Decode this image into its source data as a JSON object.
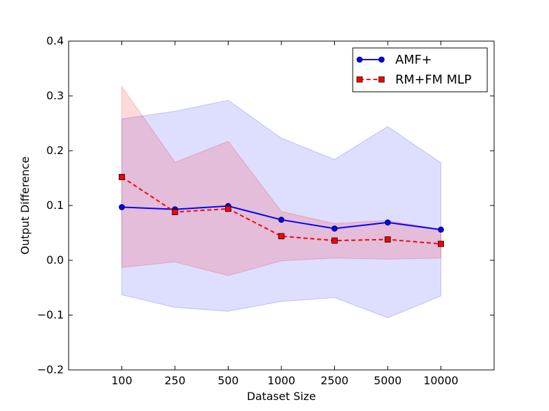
{
  "chart_data": {
    "type": "line",
    "title": "",
    "xlabel": "Dataset Size",
    "ylabel": "Output Difference",
    "categories": [
      "100",
      "250",
      "500",
      "1000",
      "2500",
      "5000",
      "10000"
    ],
    "ylim": [
      -0.2,
      0.4
    ],
    "yticks": [
      "0.4",
      "0.3",
      "0.2",
      "0.1",
      "0.0",
      "−0.1",
      "−0.2"
    ],
    "ytick_values": [
      0.4,
      0.3,
      0.2,
      0.1,
      0.0,
      -0.1,
      -0.2
    ],
    "grid": false,
    "legend_position": "top-right",
    "series": [
      {
        "name": "AMF+",
        "color": "#0000ff",
        "marker": "circle",
        "linestyle": "solid",
        "values": [
          0.097,
          0.093,
          0.099,
          0.074,
          0.058,
          0.069,
          0.056
        ],
        "upper": [
          0.258,
          0.272,
          0.292,
          0.223,
          0.184,
          0.244,
          0.178
        ],
        "lower": [
          -0.063,
          -0.086,
          -0.093,
          -0.075,
          -0.068,
          -0.105,
          -0.065
        ],
        "band_color": "#0000ff"
      },
      {
        "name": "RM+FM MLP",
        "color": "#ff0000",
        "marker": "square",
        "linestyle": "dashed",
        "values": [
          0.152,
          0.088,
          0.094,
          0.044,
          0.036,
          0.038,
          0.03
        ],
        "upper": [
          0.317,
          0.179,
          0.217,
          0.089,
          0.067,
          0.073,
          0.056
        ],
        "lower": [
          -0.013,
          -0.003,
          -0.028,
          -0.001,
          0.004,
          0.002,
          0.004
        ],
        "band_color": "#ff0000"
      }
    ]
  }
}
